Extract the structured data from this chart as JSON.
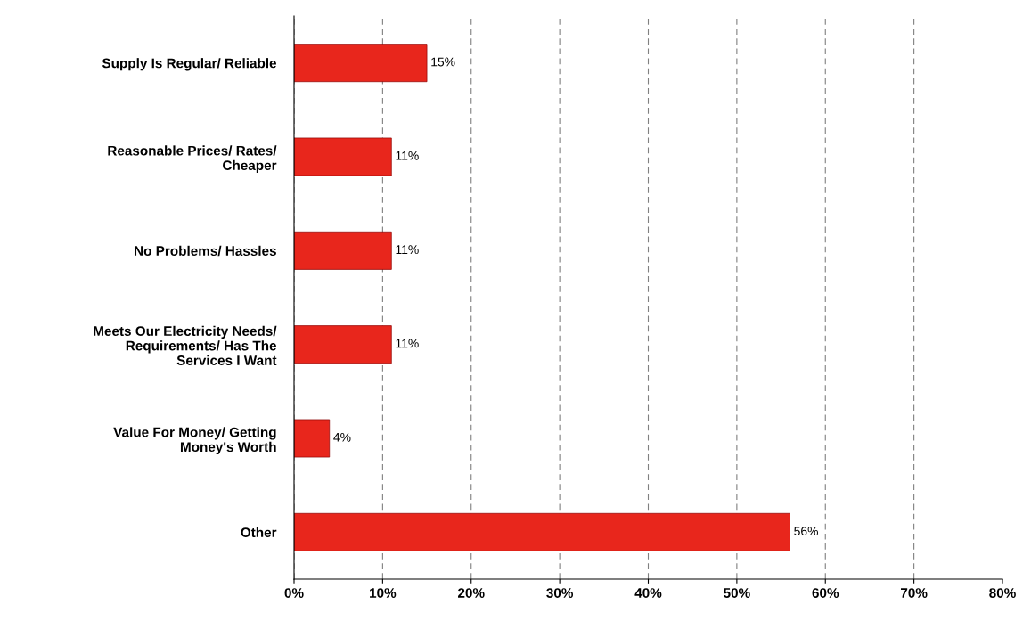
{
  "chart_data": {
    "type": "bar",
    "orientation": "horizontal",
    "categories": [
      "Supply Is Regular/ Reliable",
      "Reasonable Prices/ Rates/\nCheaper",
      "No Problems/ Hassles",
      "Meets Our Electricity Needs/\nRequirements/ Has The\nServices I Want",
      "Value For Money/ Getting\nMoney's Worth",
      "Other"
    ],
    "values": [
      15,
      11,
      11,
      11,
      4,
      56
    ],
    "value_labels": [
      "15%",
      "11%",
      "11%",
      "11%",
      "4%",
      "56%"
    ],
    "color": "#e8261c",
    "xlim": [
      0,
      80
    ],
    "xticks": [
      {
        "value": 0,
        "label": "0%"
      },
      {
        "value": 10,
        "label": "10%"
      },
      {
        "value": 20,
        "label": "20%"
      },
      {
        "value": 30,
        "label": "30%"
      },
      {
        "value": 40,
        "label": "40%"
      },
      {
        "value": 50,
        "label": "50%"
      },
      {
        "value": 60,
        "label": "60%"
      },
      {
        "value": 70,
        "label": "70%"
      },
      {
        "value": 80,
        "label": "80%"
      }
    ],
    "grid": "x",
    "line_style": "dashed"
  }
}
